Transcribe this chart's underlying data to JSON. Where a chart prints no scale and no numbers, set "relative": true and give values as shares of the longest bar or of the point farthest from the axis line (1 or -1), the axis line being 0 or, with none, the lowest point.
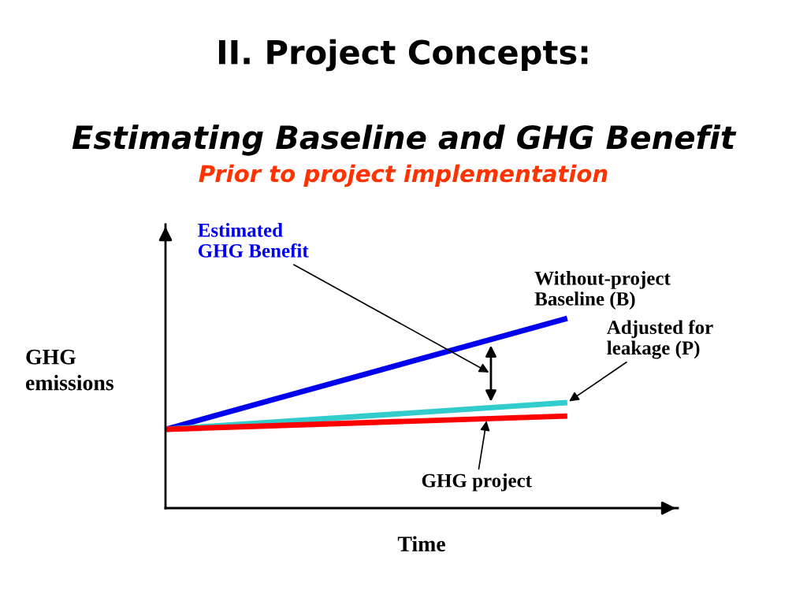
{
  "chart_data": {
    "type": "line",
    "title": "II. Project Concepts:",
    "subtitle": "Estimating Baseline and GHG Benefit",
    "annotations": [
      "Prior to project implementation",
      "Estimated\nGHG Benefit"
    ],
    "xlabel": "Time",
    "ylabel": "GHG\nemissions",
    "relative": true,
    "categories": [
      null,
      null
    ],
    "legend": false,
    "grid": false,
    "marker": "none",
    "line_style": "solid",
    "series": [
      {
        "name": "Without-project\nBaseline (B)",
        "color": "#0000ee",
        "values": [
          0.415,
          1
        ]
      },
      {
        "name": "Adjusted for\nleakage (P)",
        "color": "#33cccc",
        "values": [
          0.415,
          0.556
        ]
      },
      {
        "name": "GHG project",
        "color": "#ff0000",
        "values": [
          0.415,
          0.485
        ]
      }
    ]
  }
}
